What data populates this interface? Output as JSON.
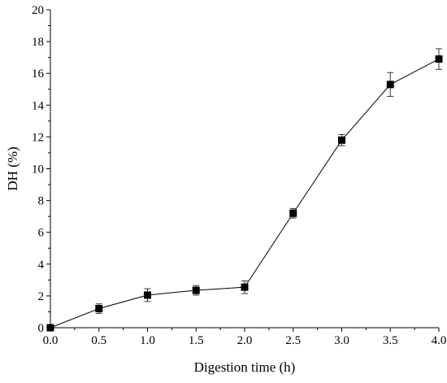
{
  "chart_data": {
    "type": "line",
    "title": "",
    "xlabel": "Digestion time (h)",
    "ylabel": "DH (%)",
    "xlim": [
      0,
      4
    ],
    "ylim": [
      0,
      20
    ],
    "x_ticks": [
      "0.0",
      "0.5",
      "1.0",
      "1.5",
      "2.0",
      "2.5",
      "3.0",
      "3.5",
      "4.0"
    ],
    "y_ticks": [
      "0",
      "2",
      "4",
      "6",
      "8",
      "10",
      "12",
      "14",
      "16",
      "18",
      "20"
    ],
    "grid": false,
    "legend": "none",
    "series": [
      {
        "marker": "square",
        "color": "#000000",
        "x": [
          0.0,
          0.5,
          1.0,
          1.5,
          2.0,
          2.5,
          3.0,
          3.5,
          4.0
        ],
        "y": [
          0.0,
          1.2,
          2.05,
          2.35,
          2.55,
          7.2,
          11.8,
          15.3,
          16.9
        ],
        "error": [
          0.0,
          0.3,
          0.4,
          0.3,
          0.4,
          0.3,
          0.35,
          0.75,
          0.65
        ]
      }
    ]
  }
}
